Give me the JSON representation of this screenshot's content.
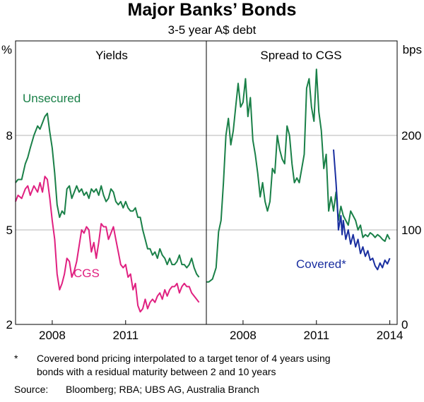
{
  "title": "Major Banks’ Bonds",
  "subtitle": "3-5 year A$ debt",
  "colors": {
    "unsecured": "#1a8048",
    "cgs": "#e02080",
    "covered": "#1a2fa0",
    "grid": "#b5b5b5",
    "frame": "#000000"
  },
  "chart_data": [
    {
      "type": "line",
      "title": "Yields",
      "ylabel_left": "%",
      "ylim": [
        2,
        11
      ],
      "yticks": [
        2,
        5,
        8
      ],
      "ytick_labels": [
        "2",
        "5",
        "8"
      ],
      "xlim": [
        2006.5,
        2014.3
      ],
      "xticks": [
        2008,
        2011
      ],
      "xtick_labels": [
        "2008",
        "2011"
      ],
      "grid": true,
      "series": [
        {
          "name": "Unsecured",
          "color": "#1a8048",
          "x": [
            2006.5,
            2006.6,
            2006.75,
            2006.9,
            2007.0,
            2007.1,
            2007.25,
            2007.4,
            2007.5,
            2007.6,
            2007.7,
            2007.8,
            2007.9,
            2008.0,
            2008.1,
            2008.2,
            2008.3,
            2008.4,
            2008.5,
            2008.6,
            2008.7,
            2008.8,
            2008.9,
            2009.0,
            2009.1,
            2009.2,
            2009.3,
            2009.4,
            2009.5,
            2009.6,
            2009.7,
            2009.8,
            2009.9,
            2010.0,
            2010.1,
            2010.2,
            2010.3,
            2010.4,
            2010.5,
            2010.6,
            2010.7,
            2010.8,
            2010.9,
            2011.0,
            2011.1,
            2011.2,
            2011.3,
            2011.4,
            2011.5,
            2011.6,
            2011.7,
            2011.8,
            2011.9,
            2012.0,
            2012.1,
            2012.2,
            2012.3,
            2012.4,
            2012.5,
            2012.6,
            2012.7,
            2012.8,
            2012.9,
            2013.0,
            2013.1,
            2013.2,
            2013.3,
            2013.4,
            2013.5,
            2013.6,
            2013.7,
            2013.8,
            2013.9,
            2014.0
          ],
          "y": [
            6.5,
            6.6,
            6.6,
            7.1,
            7.3,
            7.6,
            8.0,
            8.3,
            8.2,
            8.4,
            8.6,
            8.7,
            8.1,
            7.6,
            6.8,
            5.8,
            5.4,
            5.6,
            5.5,
            6.3,
            6.4,
            6.0,
            6.2,
            6.4,
            6.2,
            6.3,
            6.1,
            6.2,
            6.0,
            6.3,
            6.2,
            6.3,
            6.1,
            6.4,
            6.1,
            5.9,
            6.0,
            6.3,
            6.2,
            5.9,
            5.8,
            5.9,
            5.7,
            5.9,
            5.7,
            5.6,
            5.6,
            5.7,
            5.4,
            5.4,
            5.0,
            4.7,
            4.4,
            4.4,
            4.2,
            4.3,
            4.1,
            4.4,
            4.2,
            4.1,
            3.9,
            4.1,
            3.9,
            3.9,
            4.0,
            4.2,
            3.9,
            3.9,
            3.8,
            3.9,
            4.1,
            3.8,
            3.6,
            3.5
          ]
        },
        {
          "name": "CGS",
          "color": "#e02080",
          "x": [
            2006.5,
            2006.6,
            2006.75,
            2006.9,
            2007.0,
            2007.1,
            2007.25,
            2007.4,
            2007.5,
            2007.6,
            2007.7,
            2007.8,
            2007.9,
            2008.0,
            2008.1,
            2008.2,
            2008.3,
            2008.4,
            2008.5,
            2008.6,
            2008.7,
            2008.8,
            2008.9,
            2009.0,
            2009.1,
            2009.2,
            2009.3,
            2009.4,
            2009.5,
            2009.6,
            2009.7,
            2009.8,
            2009.9,
            2010.0,
            2010.1,
            2010.2,
            2010.3,
            2010.4,
            2010.5,
            2010.6,
            2010.7,
            2010.8,
            2010.9,
            2011.0,
            2011.1,
            2011.2,
            2011.3,
            2011.4,
            2011.5,
            2011.6,
            2011.7,
            2011.8,
            2011.9,
            2012.0,
            2012.1,
            2012.2,
            2012.3,
            2012.4,
            2012.5,
            2012.6,
            2012.7,
            2012.8,
            2012.9,
            2013.0,
            2013.1,
            2013.2,
            2013.3,
            2013.4,
            2013.5,
            2013.6,
            2013.7,
            2013.8,
            2013.9,
            2014.0
          ],
          "y": [
            5.9,
            6.1,
            6.0,
            6.3,
            6.4,
            6.1,
            6.4,
            6.2,
            6.5,
            6.2,
            6.7,
            6.6,
            6.0,
            5.3,
            4.7,
            3.6,
            3.1,
            3.3,
            3.6,
            4.1,
            4.0,
            3.5,
            3.7,
            4.0,
            4.5,
            5.0,
            4.9,
            5.1,
            5.0,
            4.3,
            4.6,
            4.1,
            4.6,
            5.2,
            5.1,
            5.1,
            4.7,
            4.9,
            5.1,
            4.7,
            4.3,
            3.9,
            3.8,
            3.9,
            3.5,
            3.6,
            3.1,
            3.3,
            2.6,
            2.4,
            2.5,
            2.8,
            2.5,
            2.7,
            2.8,
            2.7,
            2.9,
            3.0,
            2.8,
            3.1,
            2.9,
            3.1,
            3.2,
            3.2,
            3.3,
            3.0,
            3.2,
            3.3,
            3.2,
            3.2,
            3.0,
            2.9,
            2.8,
            2.7
          ]
        }
      ],
      "annotations": [
        "Unsecured",
        "CGS"
      ]
    },
    {
      "type": "line",
      "title": "Spread to CGS",
      "ylabel_right": "bps",
      "ylim": [
        0,
        300
      ],
      "yticks": [
        0,
        100,
        200
      ],
      "ytick_labels": [
        "0",
        "100",
        "200"
      ],
      "xlim": [
        2006.5,
        2014.3
      ],
      "xticks": [
        2008,
        2011,
        2014
      ],
      "xtick_labels": [
        "2008",
        "2011",
        "2014"
      ],
      "grid": true,
      "series": [
        {
          "name": "Unsecured",
          "color": "#1a8048",
          "x": [
            2006.5,
            2006.6,
            2006.75,
            2006.9,
            2007.0,
            2007.1,
            2007.2,
            2007.3,
            2007.4,
            2007.5,
            2007.6,
            2007.7,
            2007.8,
            2007.9,
            2008.0,
            2008.1,
            2008.2,
            2008.3,
            2008.4,
            2008.5,
            2008.6,
            2008.7,
            2008.8,
            2008.9,
            2009.0,
            2009.1,
            2009.2,
            2009.3,
            2009.4,
            2009.5,
            2009.6,
            2009.7,
            2009.8,
            2009.9,
            2010.0,
            2010.1,
            2010.2,
            2010.3,
            2010.4,
            2010.5,
            2010.6,
            2010.7,
            2010.8,
            2010.9,
            2011.0,
            2011.1,
            2011.2,
            2011.3,
            2011.4,
            2011.5,
            2011.6,
            2011.7,
            2011.8,
            2011.9,
            2012.0,
            2012.1,
            2012.2,
            2012.3,
            2012.4,
            2012.5,
            2012.6,
            2012.7,
            2012.8,
            2012.9,
            2013.0,
            2013.1,
            2013.2,
            2013.3,
            2013.4,
            2013.5,
            2013.6,
            2013.7,
            2013.8,
            2013.9,
            2014.0
          ],
          "y": [
            45,
            45,
            48,
            60,
            98,
            110,
            150,
            200,
            218,
            190,
            205,
            230,
            255,
            230,
            235,
            260,
            220,
            240,
            195,
            180,
            160,
            135,
            150,
            130,
            120,
            130,
            165,
            160,
            200,
            185,
            175,
            170,
            210,
            200,
            170,
            150,
            155,
            150,
            165,
            180,
            250,
            260,
            230,
            215,
            270,
            225,
            205,
            165,
            180,
            120,
            135,
            120,
            140,
            110,
            125,
            115,
            110,
            105,
            120,
            115,
            110,
            100,
            105,
            92,
            95,
            93,
            97,
            95,
            92,
            95,
            93,
            90,
            88,
            95,
            90
          ]
        },
        {
          "name": "Covered*",
          "color": "#1a2fa0",
          "x": [
            2011.7,
            2011.8,
            2011.85,
            2011.9,
            2012.0,
            2012.05,
            2012.1,
            2012.2,
            2012.3,
            2012.4,
            2012.5,
            2012.6,
            2012.7,
            2012.8,
            2012.9,
            2013.0,
            2013.1,
            2013.2,
            2013.3,
            2013.4,
            2013.5,
            2013.6,
            2013.7,
            2013.8,
            2013.9,
            2014.0
          ],
          "y": [
            185,
            150,
            130,
            100,
            115,
            95,
            110,
            90,
            100,
            85,
            95,
            82,
            90,
            75,
            82,
            72,
            78,
            68,
            70,
            62,
            58,
            65,
            60,
            68,
            64,
            70
          ]
        }
      ],
      "annotations": [
        "Covered*"
      ]
    }
  ],
  "footnote": {
    "marker": "*",
    "text_line1": "Covered bond pricing interpolated to a target tenor of 4 years using",
    "text_line2": "bonds with a residual maturity between 2 and 10 years"
  },
  "source": {
    "label": "Source:",
    "text": "Bloomberg; RBA; UBS AG, Australia Branch"
  }
}
